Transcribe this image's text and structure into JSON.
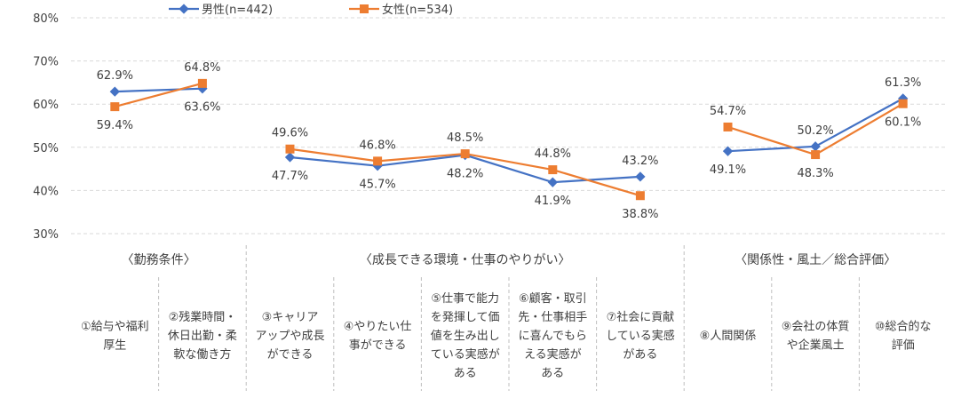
{
  "chart_data": {
    "type": "line",
    "title": "",
    "xlabel": "",
    "ylabel": "",
    "ylim": [
      30,
      80
    ],
    "yticks": [
      "30%",
      "40%",
      "50%",
      "60%",
      "70%",
      "80%"
    ],
    "grid": true,
    "legend_position": "top",
    "colors": {
      "male": "#4472c4",
      "female": "#ed7d31"
    },
    "groups": [
      {
        "label": "〈勤務条件〉",
        "categories": [
          0,
          1
        ]
      },
      {
        "label": "〈成長できる環境・仕事のやりがい〉",
        "categories": [
          2,
          3,
          4,
          5,
          6
        ]
      },
      {
        "label": "〈関係性・風土／総合評価〉",
        "categories": [
          7,
          8,
          9
        ]
      }
    ],
    "categories": [
      [
        "①給与や福利",
        "厚生"
      ],
      [
        "②残業時間・",
        "休日出勤・柔",
        "軟な働き方"
      ],
      [
        "③キャリア",
        "アップや成長",
        "ができる"
      ],
      [
        "④やりたい仕",
        "事ができる"
      ],
      [
        "⑤仕事で能力",
        "を発揮して価",
        "値を生み出し",
        "ている実感が",
        "ある"
      ],
      [
        "⑥顧客・取引",
        "先・仕事相手",
        "に喜んでもら",
        "える実感が",
        "ある"
      ],
      [
        "⑦社会に貢献",
        "している実感",
        "がある"
      ],
      [
        "⑧人間関係"
      ],
      [
        "⑨会社の体質",
        "や企業風土"
      ],
      [
        "⑩総合的な",
        "評価"
      ]
    ],
    "series": [
      {
        "key": "male",
        "name": "男性(n=442)",
        "segments": [
          [
            0,
            1
          ],
          [
            2,
            3,
            4,
            5,
            6
          ],
          [
            7,
            8,
            9
          ]
        ],
        "values": [
          62.9,
          63.6,
          47.7,
          45.7,
          48.2,
          41.9,
          43.2,
          49.1,
          50.2,
          61.3
        ],
        "labels": [
          "62.9%",
          "63.6%",
          "47.7%",
          "45.7%",
          "48.2%",
          "41.9%",
          "43.2%",
          "49.1%",
          "50.2%",
          "61.3%"
        ]
      },
      {
        "key": "female",
        "name": "女性(n=534)",
        "segments": [
          [
            0,
            1
          ],
          [
            2,
            3,
            4,
            5,
            6
          ],
          [
            7,
            8,
            9
          ]
        ],
        "values": [
          59.4,
          64.8,
          49.6,
          46.8,
          48.5,
          44.8,
          38.8,
          54.7,
          48.3,
          60.1
        ],
        "labels": [
          "59.4%",
          "64.8%",
          "49.6%",
          "46.8%",
          "48.5%",
          "44.8%",
          "38.8%",
          "54.7%",
          "48.3%",
          "60.1%"
        ]
      }
    ]
  }
}
